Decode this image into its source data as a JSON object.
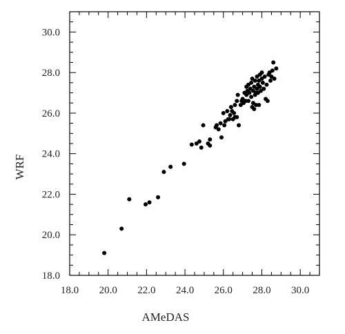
{
  "chart_data": {
    "type": "scatter",
    "title": "",
    "xlabel": "AMeDAS",
    "ylabel": "WRF",
    "xlim": [
      18.0,
      31.0
    ],
    "ylim": [
      18.0,
      31.0
    ],
    "xticks": [
      "18.0",
      "20.0",
      "22.0",
      "24.0",
      "26.0",
      "28.0",
      "30.0"
    ],
    "yticks": [
      "18.0",
      "20.0",
      "22.0",
      "24.0",
      "26.0",
      "28.0",
      "30.0"
    ],
    "marker_color": "#000000",
    "grid": false,
    "points": [
      [
        19.8,
        19.1
      ],
      [
        20.7,
        20.3
      ],
      [
        21.1,
        21.75
      ],
      [
        21.95,
        21.5
      ],
      [
        22.15,
        21.6
      ],
      [
        22.6,
        21.85
      ],
      [
        22.9,
        23.1
      ],
      [
        23.25,
        23.35
      ],
      [
        23.95,
        23.5
      ],
      [
        24.35,
        24.45
      ],
      [
        24.6,
        24.5
      ],
      [
        24.75,
        24.6
      ],
      [
        24.85,
        24.3
      ],
      [
        24.95,
        25.4
      ],
      [
        25.2,
        24.5
      ],
      [
        25.3,
        24.7
      ],
      [
        25.3,
        24.4
      ],
      [
        25.6,
        25.3
      ],
      [
        25.65,
        25.4
      ],
      [
        25.75,
        25.2
      ],
      [
        25.85,
        25.5
      ],
      [
        25.9,
        24.8
      ],
      [
        26.0,
        26.0
      ],
      [
        26.05,
        25.4
      ],
      [
        26.1,
        25.6
      ],
      [
        26.2,
        26.1
      ],
      [
        26.25,
        25.7
      ],
      [
        26.3,
        25.7
      ],
      [
        26.35,
        25.9
      ],
      [
        26.4,
        26.3
      ],
      [
        26.45,
        26.1
      ],
      [
        26.5,
        25.7
      ],
      [
        26.55,
        26.0
      ],
      [
        26.6,
        25.8
      ],
      [
        26.6,
        26.4
      ],
      [
        26.7,
        26.6
      ],
      [
        26.7,
        25.8
      ],
      [
        26.75,
        26.9
      ],
      [
        26.8,
        25.4
      ],
      [
        26.9,
        26.4
      ],
      [
        26.95,
        26.6
      ],
      [
        27.0,
        26.7
      ],
      [
        27.05,
        26.5
      ],
      [
        27.1,
        27.0
      ],
      [
        27.15,
        26.6
      ],
      [
        27.2,
        27.3
      ],
      [
        27.2,
        26.9
      ],
      [
        27.25,
        27.1
      ],
      [
        27.3,
        27.4
      ],
      [
        27.3,
        26.6
      ],
      [
        27.35,
        27.0
      ],
      [
        27.4,
        27.2
      ],
      [
        27.45,
        26.8
      ],
      [
        27.45,
        27.5
      ],
      [
        27.5,
        27.7
      ],
      [
        27.5,
        26.3
      ],
      [
        27.55,
        27.1
      ],
      [
        27.55,
        26.5
      ],
      [
        27.6,
        27.3
      ],
      [
        27.6,
        26.2
      ],
      [
        27.65,
        26.9
      ],
      [
        27.65,
        27.6
      ],
      [
        27.7,
        27.0
      ],
      [
        27.7,
        26.4
      ],
      [
        27.75,
        27.8
      ],
      [
        27.75,
        27.2
      ],
      [
        27.8,
        27.4
      ],
      [
        27.8,
        27.0
      ],
      [
        27.85,
        27.6
      ],
      [
        27.85,
        26.4
      ],
      [
        27.9,
        27.9
      ],
      [
        27.9,
        27.3
      ],
      [
        27.95,
        27.1
      ],
      [
        28.0,
        28.0
      ],
      [
        28.0,
        27.7
      ],
      [
        28.05,
        27.5
      ],
      [
        28.1,
        27.2
      ],
      [
        28.15,
        27.8
      ],
      [
        28.2,
        26.7
      ],
      [
        28.25,
        27.4
      ],
      [
        28.3,
        26.6
      ],
      [
        28.35,
        27.9
      ],
      [
        28.4,
        28.0
      ],
      [
        28.45,
        27.6
      ],
      [
        28.5,
        27.8
      ],
      [
        28.55,
        28.1
      ],
      [
        28.6,
        28.5
      ],
      [
        28.65,
        27.7
      ],
      [
        28.75,
        28.2
      ]
    ]
  }
}
